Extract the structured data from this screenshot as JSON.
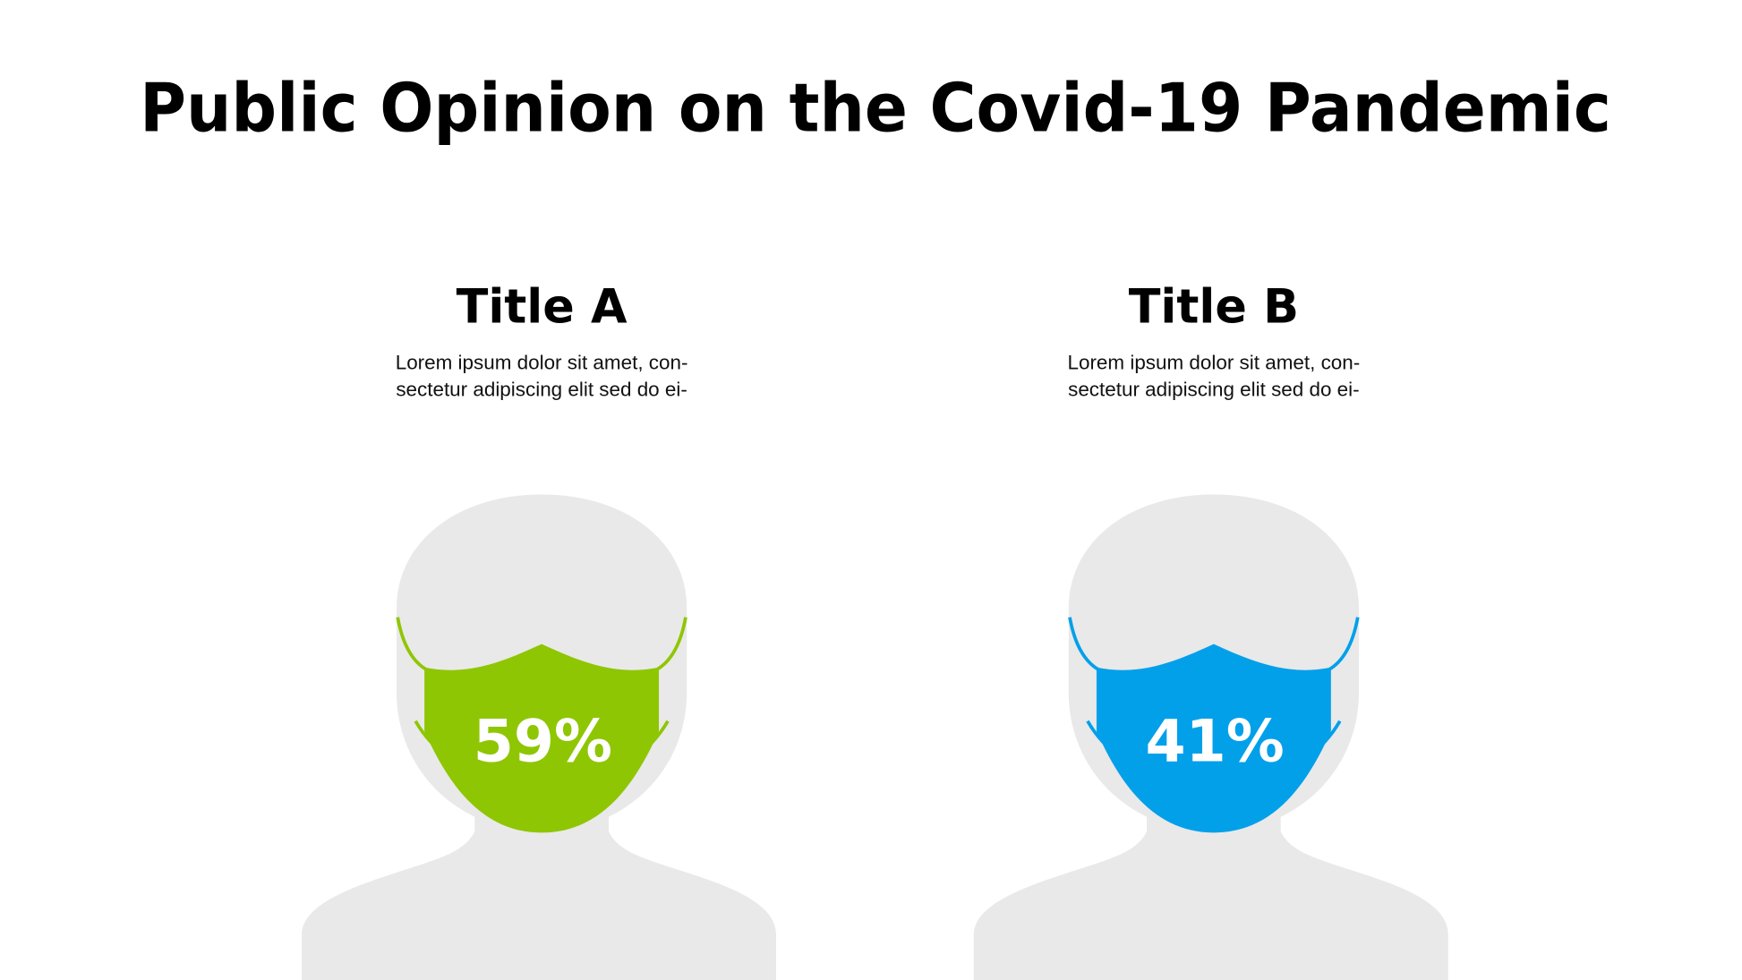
{
  "header": {
    "title": "Public Opinion on the Covid-19 Pandemic"
  },
  "panels": [
    {
      "title": "Title A",
      "text": [
        "Lorem ipsum dolor sit amet, con-",
        "sectetur adipiscing elit sed do ei-"
      ],
      "value": "59%",
      "color": "#8fc603"
    },
    {
      "title": "Title B",
      "text": [
        "Lorem ipsum dolor sit amet, con-",
        "sectetur adipiscing elit sed do ei-"
      ],
      "value": "41%",
      "color": "#03a0ea"
    }
  ]
}
